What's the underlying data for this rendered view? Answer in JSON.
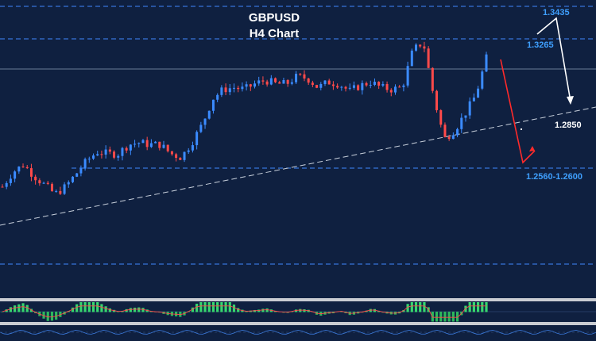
{
  "chart_data": {
    "type": "candlestick",
    "title": "GBPUSD",
    "subtitle": "H4 Chart",
    "colors": {
      "background": "#0f2040",
      "bull": "#3b8bff",
      "bear": "#ff4a4a",
      "level_line": "#3f89ff",
      "level_label": "#3fa0ff",
      "trendline": "#c8d0dc",
      "forecast_up": "#ffffff",
      "forecast_down": "#ff2a2a",
      "oscillator_pos": "#36d66e",
      "oscillator_neg": "#2cb85c",
      "signal_line": "#ff4a4a"
    },
    "levels": [
      {
        "label": "1.3435",
        "style": "dashed"
      },
      {
        "label": "1.3265",
        "style": "dashed"
      },
      {
        "label": "1.2850",
        "style": "white-label"
      },
      {
        "label": "1.2560-1.2600",
        "style": "dashed"
      }
    ],
    "price_path": [
      1.246,
      1.254,
      1.258,
      1.252,
      1.247,
      1.242,
      1.246,
      1.253,
      1.26,
      1.265,
      1.264,
      1.264,
      1.269,
      1.27,
      1.269,
      1.269,
      1.264,
      1.262,
      1.27,
      1.28,
      1.294,
      1.299,
      1.3,
      1.299,
      1.302,
      1.304,
      1.302,
      1.302,
      1.306,
      1.305,
      1.3,
      1.303,
      1.302,
      1.298,
      1.301,
      1.303,
      1.3,
      1.299,
      1.3,
      1.32,
      1.325,
      1.295,
      1.272,
      1.277,
      1.286,
      1.296,
      1.316
    ],
    "forecast": [
      {
        "direction": "up",
        "target": "1.3435"
      },
      {
        "direction": "down",
        "target": "1.2560-1.2600"
      }
    ],
    "indicator": "oscillator histogram with signal line"
  }
}
